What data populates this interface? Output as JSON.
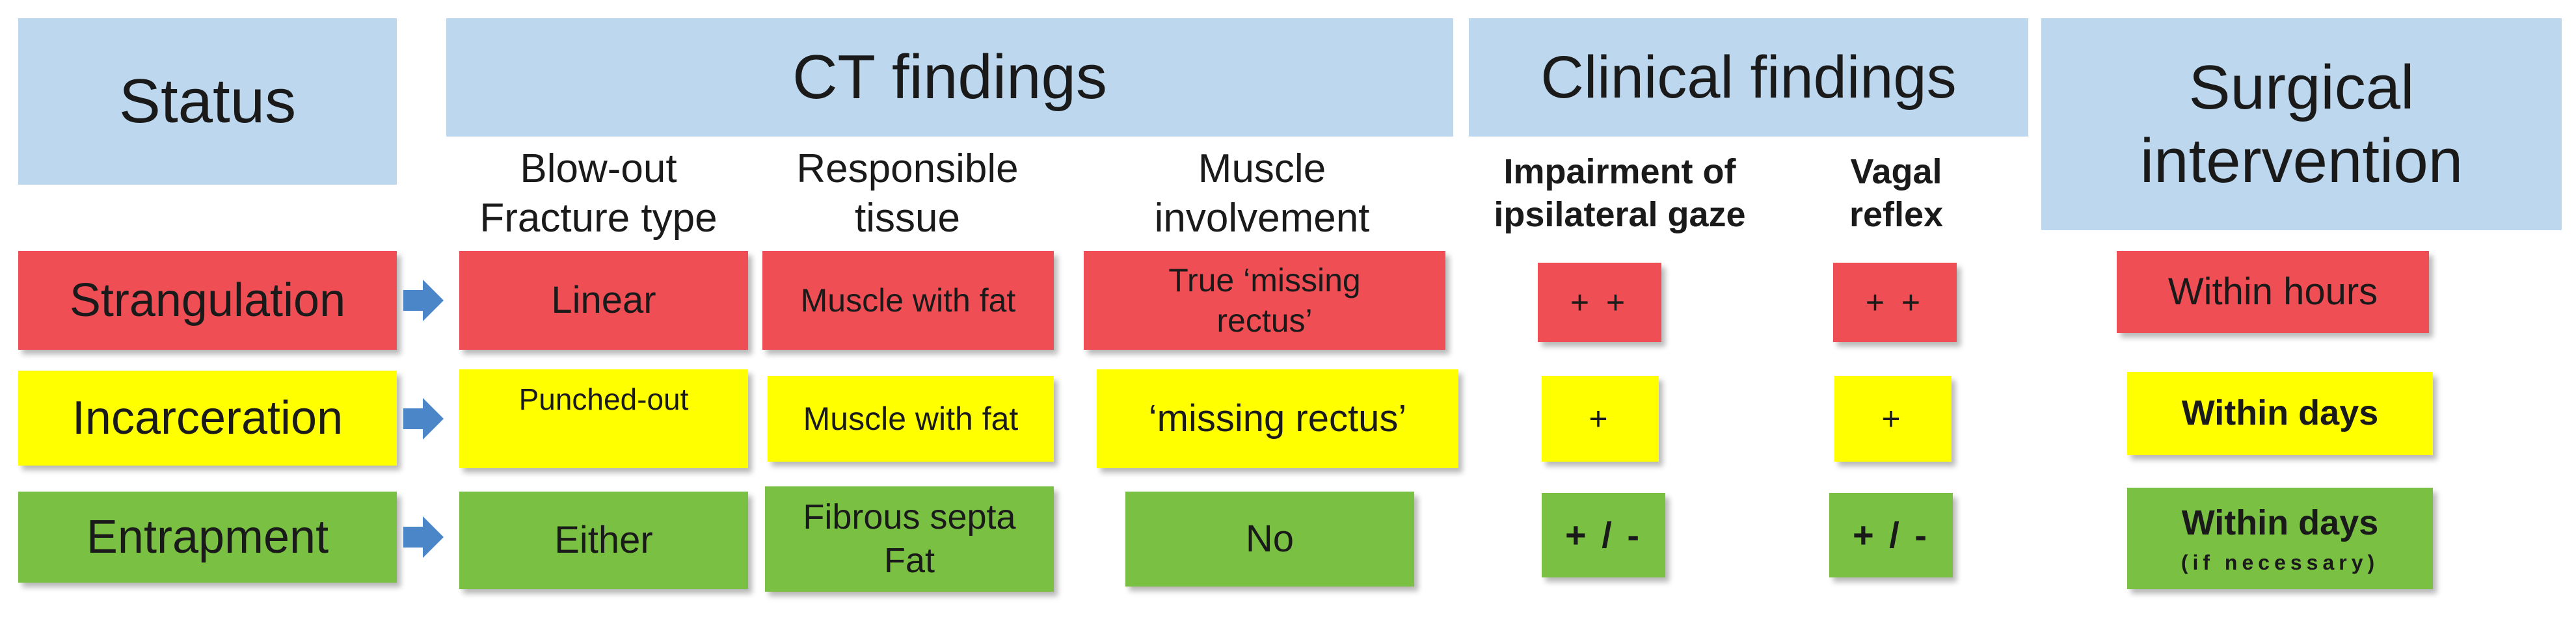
{
  "headers": {
    "status": "Status",
    "ct_findings": "CT findings",
    "clinical_findings": "Clinical findings",
    "surgical_line1": "Surgical",
    "surgical_line2": "intervention"
  },
  "subheaders": {
    "fracture_line1": "Blow-out",
    "fracture_line2": "Fracture type",
    "tissue_line1": "Responsible",
    "tissue_line2": "tissue",
    "muscle_line1": "Muscle",
    "muscle_line2": "involvement",
    "gaze_line1": "Impairment of",
    "gaze_line2": "ipsilateral gaze",
    "vagal_line1": "Vagal",
    "vagal_line2": "reflex"
  },
  "rows": [
    {
      "status": "Strangulation",
      "fracture": "Linear",
      "tissue": "Muscle with fat",
      "muscle_line1": "True ‘missing",
      "muscle_line2": "rectus’",
      "gaze": "+ +",
      "vagal": "+ +",
      "surgery": "Within hours",
      "color": "#f04e55"
    },
    {
      "status": "Incarceration",
      "fracture": "Punched-out",
      "tissue": "Muscle with fat",
      "muscle": "‘missing rectus’",
      "gaze": "+",
      "vagal": "+",
      "surgery": "Within days",
      "color": "#ffff00"
    },
    {
      "status": "Entrapment",
      "fracture": "Either",
      "tissue_line1": "Fibrous septa",
      "tissue_line2": "Fat",
      "muscle": "No",
      "gaze": "+ / -",
      "vagal": "+ / -",
      "surgery_line1": "Within days",
      "surgery_line2": "(if necessary)",
      "color": "#7ac143"
    }
  ],
  "icons": {
    "row_arrow": "right-arrow-icon"
  },
  "colors": {
    "header_bg": "#bdd7ee",
    "arrow": "#4a86c8"
  }
}
